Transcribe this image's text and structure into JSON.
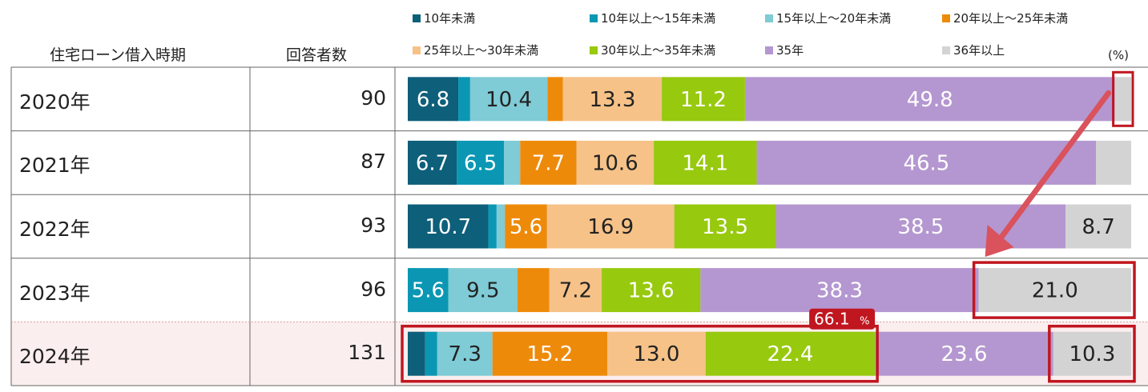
{
  "table": {
    "col1_header": "住宅ローン借入時期",
    "col2_header": "回答者数",
    "unit_label": "(%)"
  },
  "callout": {
    "value": "66.1",
    "unit": "%"
  },
  "chart_data": {
    "type": "bar",
    "orientation": "horizontal",
    "stacked": true,
    "normalized_percent": true,
    "categories": [
      "2020年",
      "2021年",
      "2022年",
      "2023年",
      "2024年"
    ],
    "respondents": [
      "90",
      "87",
      "93",
      "96",
      "131"
    ],
    "legend_position": "top",
    "series": [
      {
        "name": "10年未満",
        "color": "#0e5f7a",
        "values": [
          6.8,
          6.7,
          10.7,
          0,
          2.3
        ],
        "labels": [
          "6.8",
          "6.7",
          "10.7",
          "",
          ""
        ]
      },
      {
        "name": "10年以上～15年未満",
        "color": "#0b97b3",
        "values": [
          1.6,
          6.5,
          1.1,
          5.6,
          1.6
        ],
        "labels": [
          "",
          "6.5",
          "",
          "5.6",
          ""
        ]
      },
      {
        "name": "15年以上～20年未満",
        "color": "#7fcbd6",
        "values": [
          10.4,
          2.2,
          1.1,
          9.5,
          7.3
        ],
        "labels": [
          "10.4",
          "",
          "",
          "9.5",
          "7.3"
        ]
      },
      {
        "name": "20年以上～25年未満",
        "color": "#ee8a0a",
        "values": [
          2.1,
          7.7,
          5.6,
          4.4,
          15.2
        ],
        "labels": [
          "",
          "7.7",
          "5.6",
          "",
          "15.2"
        ]
      },
      {
        "name": "25年以上～30年未満",
        "color": "#f6c288",
        "values": [
          13.3,
          10.6,
          16.9,
          7.2,
          13.0
        ],
        "labels": [
          "13.3",
          "10.6",
          "16.9",
          "7.2",
          "13.0"
        ]
      },
      {
        "name": "30年以上～35年未満",
        "color": "#97c90e",
        "values": [
          11.2,
          14.1,
          13.5,
          13.6,
          22.4
        ],
        "labels": [
          "11.2",
          "14.1",
          "13.5",
          "13.6",
          "22.4"
        ]
      },
      {
        "name": "35年",
        "color": "#b497d0",
        "values": [
          49.8,
          46.5,
          38.5,
          38.3,
          23.6
        ],
        "labels": [
          "49.8",
          "46.5",
          "38.5",
          "38.3",
          "23.6"
        ]
      },
      {
        "name": "36年以上",
        "color": "#d3d3d3",
        "values": [
          2.2,
          4.8,
          8.7,
          21.0,
          10.3
        ],
        "labels": [
          "",
          "",
          "8.7",
          "21.0",
          "10.3"
        ]
      }
    ],
    "label_text_color": {
      "10年未満": "#ffffff",
      "10年以上～15年未満": "#ffffff",
      "15年以上～20年未満": "#222222",
      "20年以上～25年未満": "#ffffff",
      "25年以上～30年未満": "#222222",
      "30年以上～35年未満": "#ffffff",
      "35年": "#ffffff",
      "36年以上": "#222222"
    },
    "highlight_color": "#c0161f",
    "arrow_color": "#d9525c",
    "highlight_row_bg": "#fbeeee"
  }
}
